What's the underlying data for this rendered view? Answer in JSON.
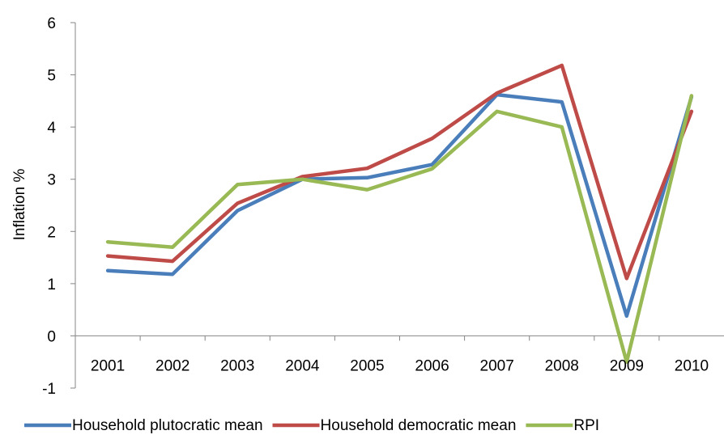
{
  "chart_data": {
    "type": "line",
    "categories": [
      "2001",
      "2002",
      "2003",
      "2004",
      "2005",
      "2006",
      "2007",
      "2008",
      "2009",
      "2010"
    ],
    "ylabel": "Inflation %",
    "xlabel": "",
    "ylim": [
      -1,
      6
    ],
    "yticks": [
      "-1",
      "0",
      "1",
      "2",
      "3",
      "4",
      "5",
      "6"
    ],
    "grid": false,
    "legend_position": "bottom",
    "series": [
      {
        "name": "Household plutocratic mean",
        "color": "#4a7ebb",
        "values": [
          1.25,
          1.18,
          2.4,
          3.0,
          3.03,
          3.28,
          4.62,
          4.48,
          0.38,
          4.58
        ]
      },
      {
        "name": "Household democratic mean",
        "color": "#be4b48",
        "values": [
          1.53,
          1.43,
          2.54,
          3.05,
          3.21,
          3.78,
          4.65,
          5.18,
          1.1,
          4.3
        ]
      },
      {
        "name": "RPI",
        "color": "#98b954",
        "values": [
          1.8,
          1.7,
          2.9,
          3.0,
          2.8,
          3.2,
          4.3,
          4.0,
          -0.5,
          4.6
        ]
      }
    ]
  }
}
